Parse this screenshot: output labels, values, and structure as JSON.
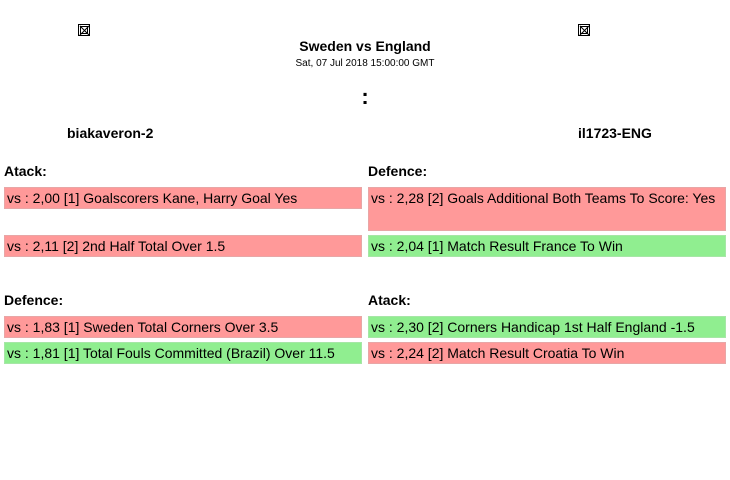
{
  "match": {
    "title": "Sweden vs England",
    "date": "Sat, 07 Jul 2018 15:00:00 GMT",
    "score": ":"
  },
  "teams": {
    "left": "biakaveron-2",
    "right": "il1723-ENG"
  },
  "colors": {
    "loss": "#ff9999",
    "win": "#90ee90"
  },
  "sections": {
    "top_left": {
      "heading": "Atack:",
      "bets": [
        {
          "text": "vs : 2,00 [1] Goalscorers Kane, Harry Goal Yes",
          "status": "red"
        },
        {
          "text": "vs : 2,11 [2] 2nd Half Total Over 1.5",
          "status": "red"
        }
      ]
    },
    "top_right": {
      "heading": "Defence:",
      "bets": [
        {
          "text": "vs : 2,28 [2] Goals Additional Both Teams To Score: Yes",
          "status": "red"
        },
        {
          "text": "vs : 2,04 [1] Match Result France To Win",
          "status": "green"
        }
      ]
    },
    "bottom_left": {
      "heading": "Defence:",
      "bets": [
        {
          "text": "vs : 1,83 [1] Sweden Total Corners Over 3.5",
          "status": "red"
        },
        {
          "text": "vs : 1,81 [1] Total Fouls Committed (Brazil) Over 11.5",
          "status": "green"
        }
      ]
    },
    "bottom_right": {
      "heading": "Atack:",
      "bets": [
        {
          "text": "vs : 2,30 [2] Corners Handicap 1st Half England -1.5",
          "status": "green"
        },
        {
          "text": "vs : 2,24 [2] Match Result Croatia To Win",
          "status": "red"
        }
      ]
    }
  }
}
